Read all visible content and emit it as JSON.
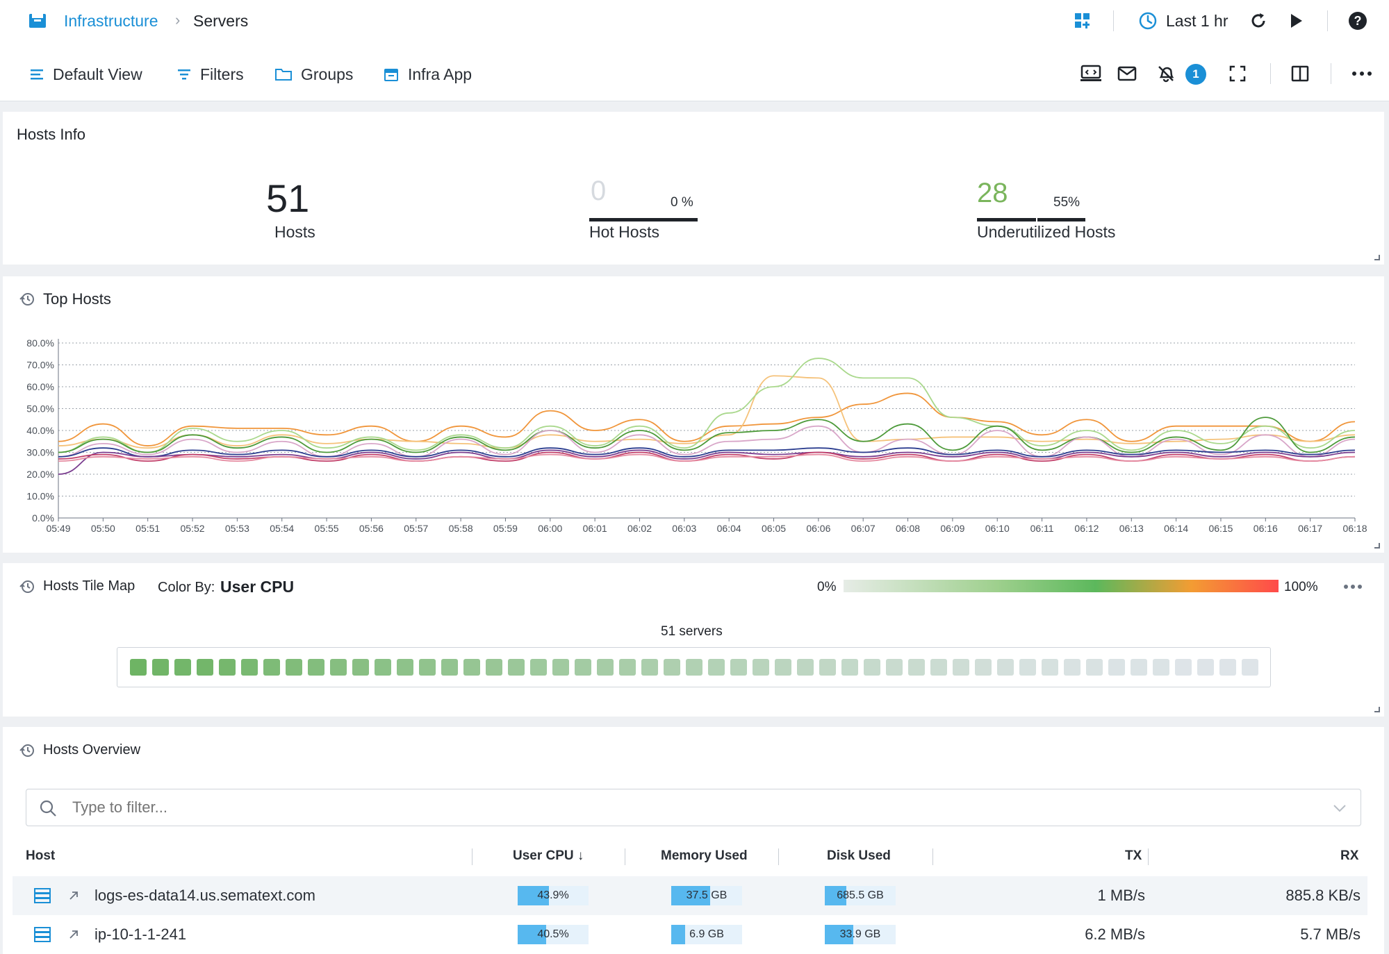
{
  "header": {
    "breadcrumb_parent": "Infrastructure",
    "breadcrumb_current": "Servers",
    "time_range": "Last 1 hr"
  },
  "toolbar": {
    "default_view": "Default View",
    "filters": "Filters",
    "groups": "Groups",
    "infra_app": "Infra App",
    "alerts_badge": "1"
  },
  "hosts_info": {
    "title": "Hosts Info",
    "total": "51",
    "total_label": "Hosts",
    "hot": "0",
    "hot_pct": "0 %",
    "hot_pct_value": 0,
    "hot_label": "Hot Hosts",
    "under": "28",
    "under_pct": "55%",
    "under_pct_value": 55,
    "under_label": "Underutilized Hosts"
  },
  "top_hosts": {
    "title": "Top Hosts"
  },
  "tile_map": {
    "title": "Hosts Tile Map",
    "color_by_label": "Color By:",
    "color_by_value": "User CPU",
    "scale_min": "0%",
    "scale_max": "100%",
    "count_label": "51 servers"
  },
  "overview": {
    "title": "Hosts Overview",
    "filter_placeholder": "Type to filter...",
    "columns": [
      "Host",
      "User CPU ↓",
      "Memory Used",
      "Disk Used",
      "TX",
      "RX"
    ],
    "rows": [
      {
        "host": "logs-es-data14.us.sematext.com",
        "cpu": "43.9%",
        "cpu_pct": 43.9,
        "mem": "37.5 GB",
        "mem_pct": 55,
        "disk": "685.5 GB",
        "disk_pct": 30,
        "tx": "1 MB/s",
        "rx": "885.8 KB/s"
      },
      {
        "host": "ip-10-1-1-241",
        "cpu": "40.5%",
        "cpu_pct": 40.5,
        "mem": "6.9 GB",
        "mem_pct": 20,
        "disk": "33.9 GB",
        "disk_pct": 40,
        "tx": "6.2 MB/s",
        "rx": "5.7 MB/s"
      }
    ]
  },
  "chart_data": {
    "type": "line",
    "x": [
      "05:49",
      "05:50",
      "05:51",
      "05:52",
      "05:53",
      "05:54",
      "05:55",
      "05:56",
      "05:57",
      "05:58",
      "05:59",
      "06:00",
      "06:01",
      "06:02",
      "06:03",
      "06:04",
      "06:05",
      "06:06",
      "06:07",
      "06:08",
      "06:09",
      "06:10",
      "06:11",
      "06:12",
      "06:13",
      "06:14",
      "06:15",
      "06:16",
      "06:17",
      "06:18"
    ],
    "yticks": [
      "0.0%",
      "10.0%",
      "20.0%",
      "30.0%",
      "40.0%",
      "50.0%",
      "60.0%",
      "70.0%",
      "80.0%"
    ],
    "ylim": [
      0,
      80
    ],
    "grid": true,
    "series": [
      {
        "color": "#f0953a",
        "values": [
          35,
          43,
          33,
          42,
          41,
          41,
          38,
          42,
          35,
          42,
          37,
          49,
          40,
          45,
          35,
          42,
          43,
          46,
          52,
          57,
          46,
          44,
          38,
          45,
          35,
          42,
          42,
          42,
          35,
          44
        ]
      },
      {
        "color": "#f5c27a",
        "values": [
          33,
          36,
          32,
          38,
          33,
          38,
          34,
          36,
          35,
          34,
          32,
          38,
          35,
          36,
          34,
          38,
          65,
          64,
          35,
          36,
          37,
          37,
          35,
          36,
          34,
          35,
          36,
          38,
          35,
          38
        ]
      },
      {
        "color": "#a9d88c",
        "values": [
          30,
          37,
          30,
          41,
          35,
          40,
          32,
          37,
          31,
          38,
          32,
          42,
          33,
          42,
          32,
          48,
          60,
          73,
          64,
          64,
          46,
          42,
          33,
          40,
          31,
          40,
          34,
          42,
          32,
          40
        ]
      },
      {
        "color": "#4d9a3a",
        "values": [
          30,
          36,
          30,
          38,
          32,
          37,
          30,
          36,
          30,
          37,
          31,
          40,
          32,
          40,
          31,
          39,
          40,
          45,
          35,
          43,
          31,
          42,
          31,
          37,
          30,
          37,
          31,
          46,
          30,
          37
        ]
      },
      {
        "color": "#d8a6c8",
        "values": [
          28,
          34,
          29,
          36,
          30,
          35,
          28,
          34,
          28,
          36,
          29,
          40,
          30,
          38,
          29,
          35,
          36,
          42,
          30,
          36,
          29,
          40,
          28,
          37,
          28,
          36,
          29,
          38,
          28,
          36
        ]
      },
      {
        "color": "#2b3d8f",
        "values": [
          28,
          32,
          28,
          31,
          29,
          31,
          28,
          31,
          28,
          31,
          28,
          32,
          29,
          32,
          28,
          31,
          31,
          32,
          30,
          32,
          29,
          31,
          28,
          31,
          29,
          31,
          30,
          31,
          29,
          31
        ]
      },
      {
        "color": "#7a3d8f",
        "values": [
          20,
          30,
          28,
          29,
          28,
          29,
          27,
          30,
          27,
          30,
          27,
          31,
          28,
          31,
          27,
          30,
          29,
          30,
          28,
          30,
          28,
          30,
          27,
          30,
          28,
          30,
          28,
          30,
          28,
          30
        ]
      },
      {
        "color": "#c2406a",
        "values": [
          27,
          29,
          26,
          29,
          27,
          28,
          26,
          29,
          26,
          28,
          26,
          30,
          27,
          30,
          26,
          29,
          27,
          30,
          27,
          29,
          26,
          29,
          26,
          29,
          26,
          29,
          27,
          29,
          26,
          28
        ]
      },
      {
        "color": "#e58aa0",
        "values": [
          26,
          28,
          27,
          28,
          26,
          28,
          27,
          28,
          26,
          28,
          27,
          29,
          27,
          29,
          26,
          28,
          28,
          29,
          26,
          28,
          26,
          28,
          27,
          28,
          26,
          28,
          27,
          28,
          26,
          28
        ]
      }
    ]
  },
  "tile_values": [
    42,
    41,
    40,
    40,
    39,
    38,
    36,
    35,
    34,
    33,
    32,
    31,
    30,
    29,
    28,
    27,
    26,
    25,
    24,
    23,
    22,
    21,
    20,
    19,
    18,
    17,
    16,
    15,
    14,
    13,
    12,
    11,
    10,
    9,
    8,
    8,
    7,
    6,
    5,
    4,
    3,
    3,
    2,
    2,
    1,
    1,
    1,
    0,
    0,
    0,
    0
  ]
}
